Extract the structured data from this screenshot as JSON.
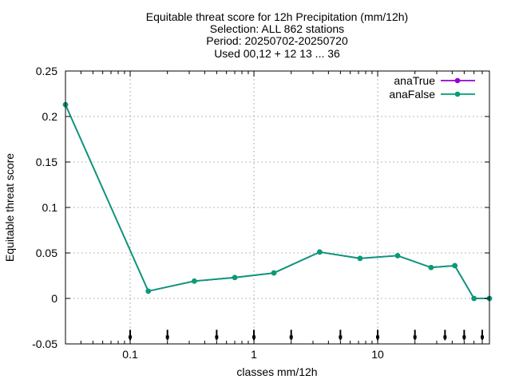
{
  "chart_data": {
    "type": "line",
    "title_lines": [
      "Equitable threat score  for 12h Precipitation (mm/12h)",
      "Selection: ALL    862 stations",
      "Period: 20250702-20250720",
      "Used 00,12 + 12 13 ... 36"
    ],
    "xlabel": "classes mm/12h",
    "ylabel": "Equitable threat score",
    "x_scale": "log",
    "xlim": [
      0.03,
      80
    ],
    "ylim": [
      -0.05,
      0.25
    ],
    "x_ticks": [
      {
        "value": 0.1,
        "label": "0.1"
      },
      {
        "value": 1,
        "label": "1"
      },
      {
        "value": 10,
        "label": "10"
      }
    ],
    "y_ticks": [
      {
        "value": 0.25,
        "label": "0.25"
      },
      {
        "value": 0.2,
        "label": "0.2"
      },
      {
        "value": 0.15,
        "label": "0.15"
      },
      {
        "value": 0.1,
        "label": "0.1"
      },
      {
        "value": 0.05,
        "label": "0.05"
      },
      {
        "value": 0,
        "label": "0"
      },
      {
        "value": -0.05,
        "label": "-0.05"
      }
    ],
    "grid": true,
    "legend_position": "top-right",
    "class_limit_markers": [
      0.1,
      0.2,
      0.5,
      1,
      2,
      5,
      10,
      20,
      35,
      50,
      70
    ],
    "x": [
      0.03,
      0.14,
      0.33,
      0.7,
      1.45,
      3.4,
      7.2,
      14.5,
      27,
      42,
      60,
      80
    ],
    "series": [
      {
        "name": "anaTrue",
        "color": "#9400d3",
        "values": [
          0.213,
          0.008,
          0.019,
          0.023,
          0.028,
          0.051,
          0.044,
          0.047,
          0.034,
          0.036,
          0.0,
          0.0
        ]
      },
      {
        "name": "anaFalse",
        "color": "#009e73",
        "values": [
          0.213,
          0.008,
          0.019,
          0.023,
          0.028,
          0.051,
          0.044,
          0.047,
          0.034,
          0.036,
          0.0,
          0.0
        ]
      }
    ]
  }
}
